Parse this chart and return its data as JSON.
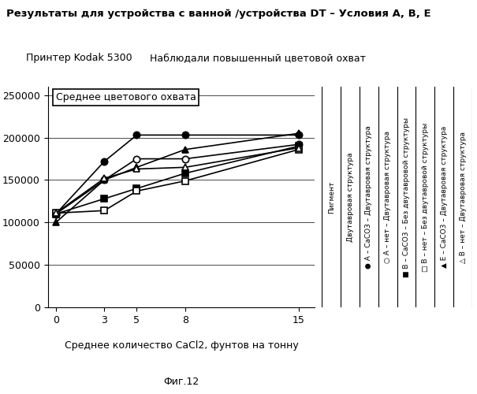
{
  "title": "Результаты для устройства с ванной /устройства DT – Условия А, В, Е",
  "subtitle_box1": "Принтер Kodak 5300",
  "subtitle_box2": "Наблюдали повышенный цветовой охват",
  "ylabel_box": "Среднее цветового охвата",
  "xlabel_box": "Среднее количество CaCl2, фунтов на тонну",
  "caption": "Фиг.12",
  "x": [
    0,
    3,
    5,
    8,
    15
  ],
  "series": [
    {
      "values": [
        110000,
        172000,
        203000,
        203000,
        203000
      ],
      "marker": "o",
      "filled": true
    },
    {
      "values": [
        110000,
        150000,
        175000,
        175000,
        192000
      ],
      "marker": "o",
      "filled": false
    },
    {
      "values": [
        110000,
        128000,
        140000,
        158000,
        190000
      ],
      "marker": "s",
      "filled": true
    },
    {
      "values": [
        111000,
        114000,
        137000,
        149000,
        186000
      ],
      "marker": "s",
      "filled": false
    },
    {
      "values": [
        100000,
        150000,
        165000,
        186000,
        205000
      ],
      "marker": "^",
      "filled": true
    },
    {
      "values": [
        111000,
        152000,
        163000,
        165000,
        188000
      ],
      "marker": "^",
      "filled": false
    }
  ],
  "ylim": [
    0,
    260000
  ],
  "yticks": [
    0,
    50000,
    100000,
    150000,
    200000,
    250000
  ],
  "xticks": [
    0,
    3,
    5,
    8,
    15
  ],
  "legend_cols": [
    {
      "header": "Пигмент",
      "body": ""
    },
    {
      "header": "Двутавровая структура",
      "body": ""
    },
    {
      "header": "•  А – СаСО3 – Двутавровая структура",
      "body": ""
    },
    {
      "header": "•  А – нет – Двутавровая структура",
      "body": ""
    },
    {
      "header": "■  В – СаСО3 – Без двутавровой структуры",
      "body": ""
    },
    {
      "header": "□  В – нет – Без двутавровой структуры",
      "body": ""
    },
    {
      "header": "▲  Е – СаСО3 – Двутавровая структура",
      "body": ""
    },
    {
      "header": "△  В – нет – Двутавровая структура",
      "body": ""
    }
  ],
  "bg_color": "#ffffff"
}
